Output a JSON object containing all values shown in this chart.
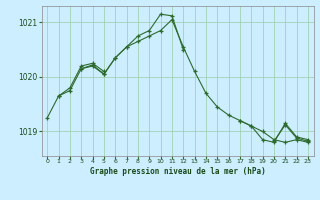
{
  "title": "Graphe pression niveau de la mer (hPa)",
  "background_color": "#cceeff",
  "plot_background": "#cceeff",
  "grid_color": "#99ccaa",
  "line_color": "#2d6b2d",
  "ylim": [
    1018.55,
    1021.3
  ],
  "yticks": [
    1019,
    1020,
    1021
  ],
  "xlim": [
    -0.5,
    23.5
  ],
  "xticks": [
    0,
    1,
    2,
    3,
    4,
    5,
    6,
    7,
    8,
    9,
    10,
    11,
    12,
    13,
    14,
    15,
    16,
    17,
    18,
    19,
    20,
    21,
    22,
    23
  ],
  "series1_x": [
    0,
    1,
    2,
    3,
    4,
    5,
    6,
    7,
    8,
    9,
    10,
    11,
    12,
    13,
    14,
    15,
    16,
    17,
    18,
    19,
    20,
    21,
    22,
    23
  ],
  "series1_y": [
    1019.25,
    1019.65,
    1019.75,
    1020.15,
    1020.2,
    1020.05,
    1020.35,
    1020.55,
    1020.65,
    1020.75,
    1020.85,
    1021.05,
    1020.55,
    1020.1,
    1019.7,
    1019.45,
    1019.3,
    1019.2,
    1019.1,
    1019.0,
    1018.85,
    1018.8,
    1018.85,
    1018.8
  ],
  "series2_x": [
    1,
    2,
    3,
    4,
    5
  ],
  "series2_y": [
    1019.65,
    1019.8,
    1020.2,
    1020.25,
    1020.1
  ],
  "series3_x": [
    3,
    4,
    5,
    6,
    7,
    8,
    9,
    10,
    11,
    12
  ],
  "series3_y": [
    1020.15,
    1020.22,
    1020.05,
    1020.35,
    1020.55,
    1020.75,
    1020.85,
    1021.15,
    1021.12,
    1020.5
  ],
  "series4_x": [
    17,
    18,
    19,
    20,
    21,
    22,
    23
  ],
  "series4_y": [
    1019.2,
    1019.1,
    1018.85,
    1018.8,
    1019.15,
    1018.9,
    1018.85
  ],
  "series5_x": [
    20,
    21,
    22,
    23
  ],
  "series5_y": [
    1018.82,
    1019.12,
    1018.88,
    1018.82
  ]
}
